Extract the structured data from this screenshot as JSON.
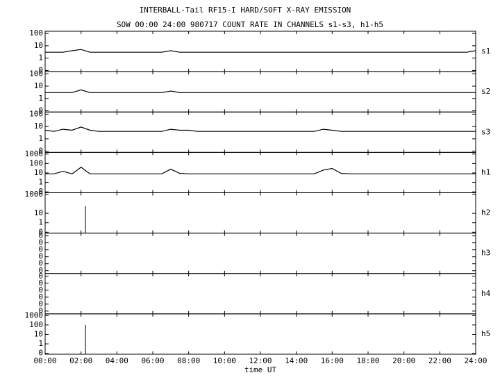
{
  "title": "INTERBALL-Tail RF15-I HARD/SOFT X-RAY EMISSION",
  "subtitle": "SOW 00:00 24:00 980717  COUNT RATE IN CHANNELS s1-s3, h1-h5",
  "x_label": "time UT",
  "xlim": [
    0,
    24
  ],
  "xticks": [
    {
      "value": 0,
      "label": "00:00"
    },
    {
      "value": 2,
      "label": "02:00"
    },
    {
      "value": 4,
      "label": "04:00"
    },
    {
      "value": 6,
      "label": "06:00"
    },
    {
      "value": 8,
      "label": "08:00"
    },
    {
      "value": 10,
      "label": "10:00"
    },
    {
      "value": 12,
      "label": "12:00"
    },
    {
      "value": 14,
      "label": "14:00"
    },
    {
      "value": 16,
      "label": "16:00"
    },
    {
      "value": 18,
      "label": "18:00"
    },
    {
      "value": 20,
      "label": "20:00"
    },
    {
      "value": 22,
      "label": "22:00"
    },
    {
      "value": 24,
      "label": "24:00"
    }
  ],
  "x": [
    0,
    0.5,
    1,
    1.5,
    2,
    2.5,
    3,
    3.5,
    4,
    4.5,
    5,
    5.5,
    6,
    6.5,
    7,
    7.5,
    8,
    8.5,
    9,
    9.5,
    10,
    10.5,
    11,
    11.5,
    12,
    12.5,
    13,
    13.5,
    14,
    14.5,
    15,
    15.5,
    16,
    16.5,
    17,
    17.5,
    18,
    18.5,
    19,
    19.5,
    20,
    20.5,
    21,
    21.5,
    22,
    22.5,
    23,
    23.5,
    24
  ],
  "chart_data": [
    {
      "type": "line",
      "label": "s1",
      "color": "#000000",
      "log": true,
      "ylim": [
        0.08,
        150
      ],
      "yticks": [
        100,
        10,
        1,
        {
          "value": 0.1,
          "label": "0"
        }
      ],
      "values": [
        3,
        3,
        3,
        4,
        5,
        3,
        3,
        3,
        3,
        3,
        3,
        3,
        3,
        3,
        4,
        3,
        3,
        3,
        3,
        3,
        3,
        3,
        3,
        3,
        3,
        3,
        3,
        3,
        3,
        3,
        3,
        3,
        3,
        3,
        3,
        3,
        3,
        3,
        3,
        3,
        3,
        3,
        3,
        3,
        3,
        3,
        3,
        3,
        4
      ]
    },
    {
      "type": "line",
      "label": "s2",
      "color": "#000000",
      "log": true,
      "ylim": [
        0.08,
        150
      ],
      "yticks": [
        100,
        10,
        1,
        {
          "value": 0.1,
          "label": "0"
        }
      ],
      "values": [
        3,
        3,
        3,
        3,
        5,
        3,
        3,
        3,
        3,
        3,
        3,
        3,
        3,
        3,
        4,
        3,
        3,
        3,
        3,
        3,
        3,
        3,
        3,
        3,
        3,
        3,
        3,
        3,
        3,
        3,
        3,
        3,
        3,
        3,
        3,
        3,
        3,
        3,
        3,
        3,
        3,
        3,
        3,
        3,
        3,
        3,
        3,
        3,
        3
      ]
    },
    {
      "type": "line",
      "label": "s3",
      "color": "#000000",
      "log": true,
      "ylim": [
        0.08,
        150
      ],
      "yticks": [
        100,
        10,
        1,
        {
          "value": 0.1,
          "label": "0"
        }
      ],
      "values": [
        5,
        4,
        6,
        5,
        9,
        5,
        4,
        4,
        4,
        4,
        4,
        4,
        4,
        4,
        6,
        5,
        5,
        4,
        4,
        4,
        4,
        4,
        4,
        4,
        4,
        4,
        4,
        4,
        4,
        4,
        4,
        6,
        5,
        4,
        4,
        4,
        4,
        4,
        4,
        4,
        4,
        4,
        4,
        4,
        4,
        4,
        4,
        4,
        4
      ]
    },
    {
      "type": "line",
      "label": "h1",
      "color": "#000000",
      "log": true,
      "ylim": [
        0.08,
        1500
      ],
      "yticks": [
        1000,
        100,
        10,
        1,
        {
          "value": 0.1,
          "label": "0"
        }
      ],
      "values": [
        8,
        8,
        15,
        8,
        40,
        8,
        8,
        8,
        8,
        8,
        8,
        8,
        8,
        8,
        25,
        9,
        8,
        8,
        8,
        8,
        8,
        8,
        8,
        8,
        8,
        8,
        8,
        8,
        8,
        8,
        8,
        20,
        30,
        9,
        8,
        8,
        8,
        8,
        8,
        8,
        8,
        8,
        8,
        8,
        8,
        8,
        8,
        8,
        8
      ]
    },
    {
      "type": "spike",
      "label": "h2",
      "color": "#000000",
      "log": true,
      "ylim": [
        0.08,
        1500
      ],
      "yticks": [
        1000,
        10,
        1,
        {
          "value": 0.1,
          "label": "0"
        }
      ],
      "spike_x": [
        2.25
      ],
      "values": [
        60
      ]
    },
    {
      "type": "empty",
      "label": "h3",
      "ytick_labels": [
        "0",
        "0",
        "0",
        "0",
        "0",
        "0"
      ]
    },
    {
      "type": "empty",
      "label": "h4",
      "ytick_labels": [
        "0",
        "0",
        "0",
        "0",
        "0",
        "0"
      ]
    },
    {
      "type": "spike",
      "label": "h5",
      "color": "#000000",
      "log": true,
      "ylim": [
        0.08,
        1500
      ],
      "yticks": [
        1000,
        100,
        10,
        1,
        {
          "value": 0.1,
          "label": "0"
        }
      ],
      "spike_x": [
        2.25
      ],
      "values": [
        100
      ]
    }
  ]
}
